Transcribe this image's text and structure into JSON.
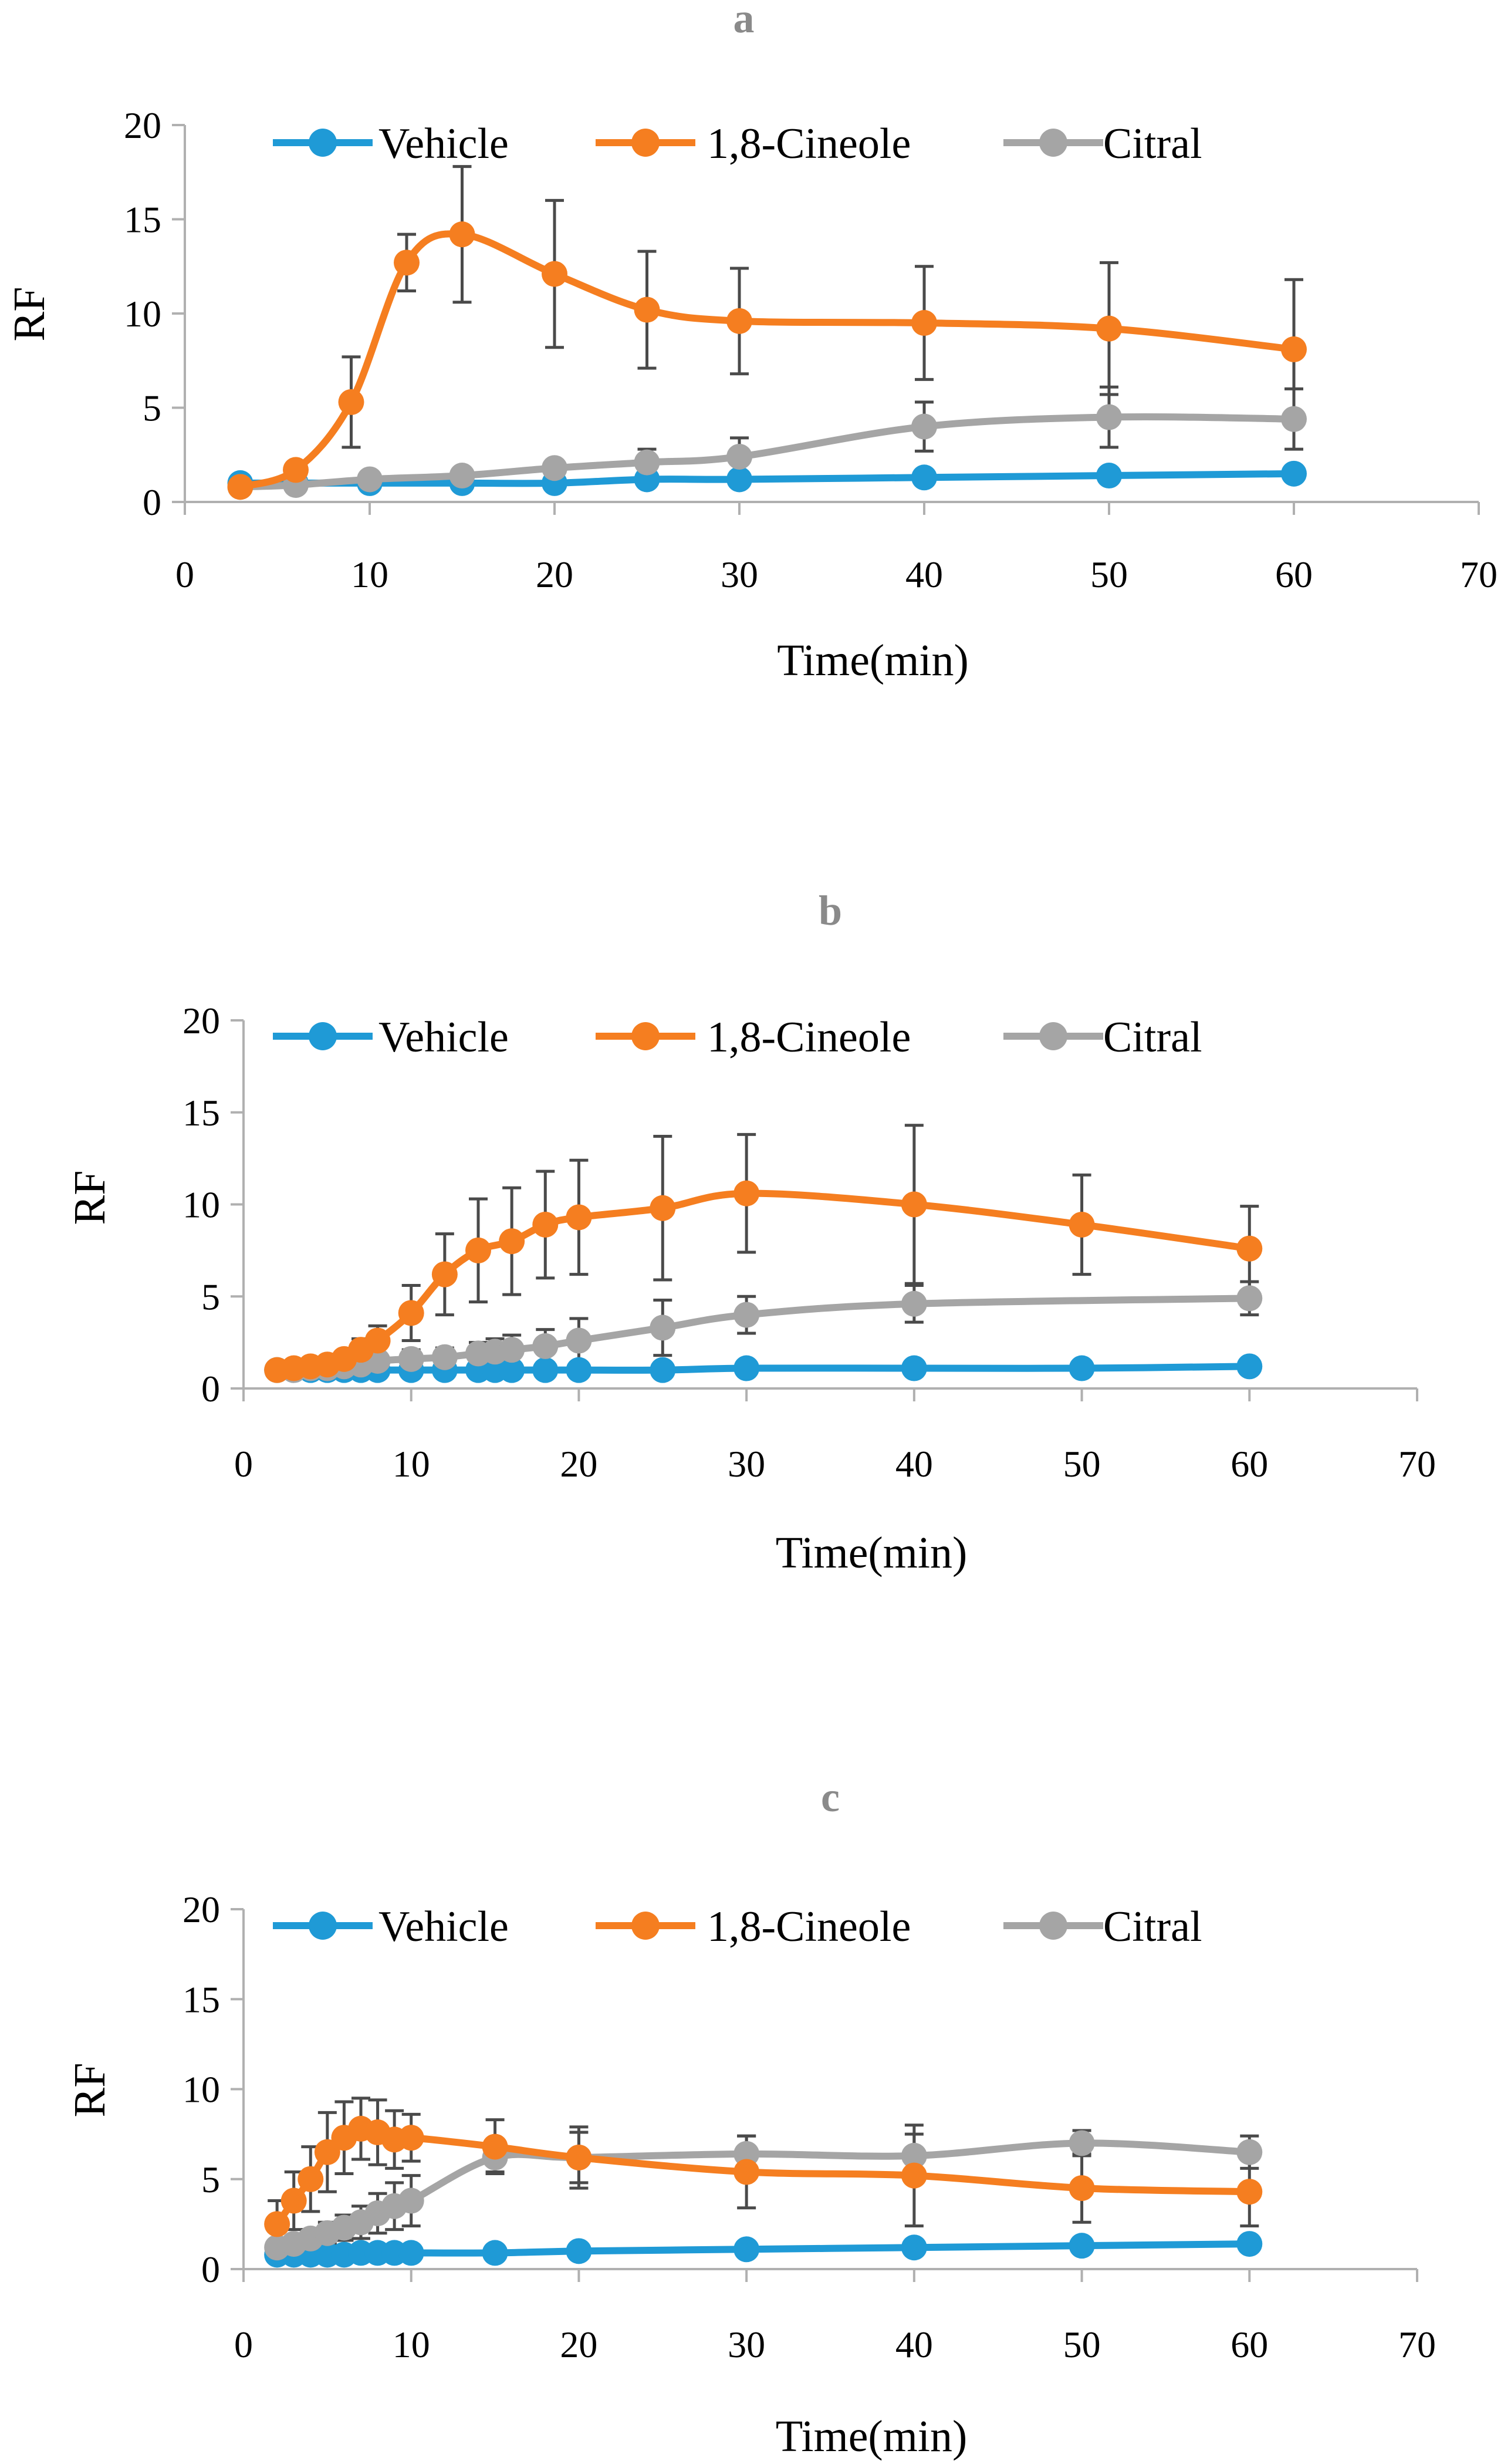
{
  "colors": {
    "vehicle": "#1f9ad6",
    "cineole": "#f57e20",
    "citral": "#a5a5a5",
    "axis": "#b0b0b0",
    "errorbar": "#4a4a4a"
  },
  "chart_data": [
    {
      "type": "line",
      "panel": "a",
      "xlabel": "Time(min)",
      "ylabel": "RF",
      "xlim": [
        0,
        70
      ],
      "ylim": [
        0,
        20
      ],
      "xticks": [
        "0",
        "10",
        "20",
        "30",
        "40",
        "50",
        "60",
        "70"
      ],
      "yticks": [
        "0",
        "5",
        "10",
        "15",
        "20"
      ],
      "legend_position": "top",
      "series": [
        {
          "name": "Vehicle",
          "color_key": "vehicle",
          "x": [
            3,
            6,
            10,
            15,
            20,
            25,
            30,
            40,
            50,
            60
          ],
          "y": [
            1.0,
            1.0,
            1.0,
            1.0,
            1.0,
            1.2,
            1.2,
            1.3,
            1.4,
            1.5
          ],
          "err": [
            0,
            0,
            0,
            0,
            0,
            0,
            0,
            0,
            0,
            0
          ]
        },
        {
          "name": "1,8-Cineole",
          "color_key": "cineole",
          "x": [
            3,
            6,
            9,
            12,
            15,
            20,
            25,
            30,
            40,
            50,
            60
          ],
          "y": [
            0.8,
            1.7,
            5.3,
            12.7,
            14.2,
            12.1,
            10.2,
            9.6,
            9.5,
            9.2,
            8.1
          ],
          "err": [
            0,
            0.3,
            2.4,
            1.5,
            3.6,
            3.9,
            3.1,
            2.8,
            3.0,
            3.5,
            3.7
          ]
        },
        {
          "name": "Citral",
          "color_key": "citral",
          "x": [
            3,
            6,
            10,
            15,
            20,
            25,
            30,
            40,
            50,
            60
          ],
          "y": [
            0.8,
            0.9,
            1.2,
            1.4,
            1.8,
            2.1,
            2.4,
            4.0,
            4.5,
            4.4
          ],
          "err": [
            0,
            0,
            0,
            0,
            0.4,
            0.7,
            1.0,
            1.3,
            1.6,
            1.6
          ]
        }
      ]
    },
    {
      "type": "line",
      "panel": "b",
      "xlabel": "Time(min)",
      "ylabel": "RF",
      "xlim": [
        0,
        70
      ],
      "ylim": [
        0,
        20
      ],
      "xticks": [
        "0",
        "10",
        "20",
        "30",
        "40",
        "50",
        "60",
        "70"
      ],
      "yticks": [
        "0",
        "5",
        "10",
        "15",
        "20"
      ],
      "legend_position": "top",
      "series": [
        {
          "name": "Vehicle",
          "color_key": "vehicle",
          "x": [
            2,
            3,
            4,
            5,
            6,
            7,
            8,
            10,
            12,
            14,
            15,
            16,
            18,
            20,
            25,
            30,
            40,
            50,
            60
          ],
          "y": [
            1.0,
            1.0,
            1.0,
            1.0,
            1.0,
            1.0,
            1.0,
            1.0,
            1.0,
            1.0,
            1.0,
            1.0,
            1.0,
            1.0,
            1.0,
            1.1,
            1.1,
            1.1,
            1.2
          ],
          "err": [
            0,
            0,
            0,
            0,
            0,
            0,
            0,
            0,
            0,
            0,
            0,
            0,
            0,
            0,
            0,
            0,
            0,
            0,
            0
          ]
        },
        {
          "name": "1,8-Cineole",
          "color_key": "cineole",
          "x": [
            2,
            3,
            4,
            5,
            6,
            7,
            8,
            10,
            12,
            14,
            16,
            18,
            20,
            25,
            30,
            40,
            50,
            60
          ],
          "y": [
            1.0,
            1.1,
            1.2,
            1.3,
            1.6,
            2.1,
            2.6,
            4.1,
            6.2,
            7.5,
            8.0,
            8.9,
            9.3,
            9.8,
            10.6,
            10.0,
            8.9,
            7.6
          ],
          "err": [
            0,
            0,
            0,
            0.2,
            0.4,
            0.6,
            0.8,
            1.5,
            2.2,
            2.8,
            2.9,
            2.9,
            3.1,
            3.9,
            3.2,
            4.3,
            2.7,
            2.3
          ]
        },
        {
          "name": "Citral",
          "color_key": "citral",
          "x": [
            2,
            3,
            4,
            5,
            6,
            7,
            8,
            10,
            12,
            14,
            15,
            16,
            18,
            20,
            25,
            30,
            40,
            60
          ],
          "y": [
            1.0,
            1.0,
            1.1,
            1.1,
            1.2,
            1.3,
            1.5,
            1.6,
            1.7,
            1.9,
            2.0,
            2.1,
            2.3,
            2.6,
            3.3,
            4.0,
            4.6,
            4.9
          ],
          "err": [
            0,
            0,
            0,
            0.1,
            0.2,
            0.3,
            0.4,
            0.5,
            0.5,
            0.6,
            0.7,
            0.8,
            0.9,
            1.2,
            1.5,
            1.0,
            1.0,
            0.9
          ]
        }
      ]
    },
    {
      "type": "line",
      "panel": "c",
      "xlabel": "Time(min)",
      "ylabel": "RF",
      "xlim": [
        0,
        70
      ],
      "ylim": [
        0,
        20
      ],
      "xticks": [
        "0",
        "10",
        "20",
        "30",
        "40",
        "50",
        "60",
        "70"
      ],
      "yticks": [
        "0",
        "5",
        "10",
        "15",
        "20"
      ],
      "legend_position": "top",
      "series": [
        {
          "name": "Vehicle",
          "color_key": "vehicle",
          "x": [
            2,
            3,
            4,
            5,
            6,
            7,
            8,
            9,
            10,
            15,
            20,
            30,
            40,
            50,
            60
          ],
          "y": [
            0.8,
            0.8,
            0.8,
            0.8,
            0.8,
            0.9,
            0.9,
            0.9,
            0.9,
            0.9,
            1.0,
            1.1,
            1.2,
            1.3,
            1.4
          ],
          "err": [
            0,
            0,
            0,
            0,
            0,
            0,
            0,
            0,
            0,
            0,
            0,
            0,
            0,
            0,
            0
          ]
        },
        {
          "name": "1,8-Cineole",
          "color_key": "cineole",
          "x": [
            2,
            3,
            4,
            5,
            6,
            7,
            8,
            9,
            10,
            15,
            20,
            30,
            40,
            50,
            60
          ],
          "y": [
            2.5,
            3.8,
            5.0,
            6.5,
            7.3,
            7.8,
            7.6,
            7.2,
            7.3,
            6.8,
            6.2,
            5.4,
            5.2,
            4.5,
            4.3
          ],
          "err": [
            1.3,
            1.6,
            1.8,
            2.2,
            2.0,
            1.7,
            1.8,
            1.6,
            1.3,
            1.5,
            1.7,
            2.0,
            2.8,
            1.9,
            1.9
          ]
        },
        {
          "name": "Citral",
          "color_key": "citral",
          "x": [
            2,
            3,
            4,
            5,
            6,
            7,
            8,
            9,
            10,
            15,
            20,
            30,
            40,
            50,
            60
          ],
          "y": [
            1.2,
            1.4,
            1.7,
            2.0,
            2.3,
            2.6,
            3.1,
            3.5,
            3.8,
            6.2,
            6.2,
            6.4,
            6.3,
            7.0,
            6.5
          ],
          "err": [
            0.3,
            0.4,
            0.5,
            0.6,
            0.7,
            0.9,
            1.1,
            1.3,
            1.4,
            0.8,
            1.4,
            1.0,
            1.2,
            0.7,
            0.9
          ]
        }
      ]
    }
  ]
}
